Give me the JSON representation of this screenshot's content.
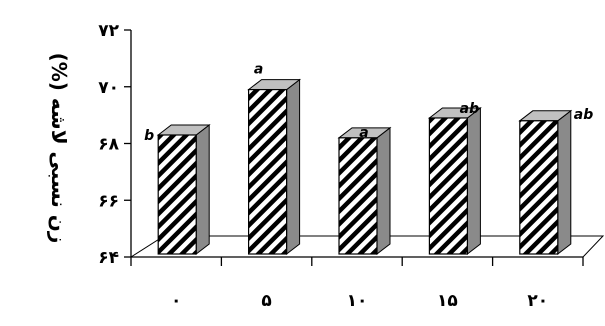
{
  "chart_data": {
    "type": "bar",
    "categories": [
      "۰",
      "۵",
      "۱۰",
      "۱۵",
      "۲۰"
    ],
    "values": [
      68.3,
      69.9,
      68.2,
      68.9,
      68.8
    ],
    "value_labels": [
      "b",
      "a",
      "a",
      "ab",
      "ab"
    ],
    "title": "",
    "xlabel": "",
    "ylabel": "زن نسبی لاشه (%)",
    "ylim": [
      64,
      72
    ],
    "yticks": [
      64,
      66,
      68,
      70,
      72
    ],
    "ytick_labels": [
      "۶۴",
      "۶۶",
      "۶۸",
      "۷۰",
      "۷۲"
    ],
    "grid": false,
    "legend": "none",
    "colors": {
      "bar_front": "#ffffff",
      "bar_stripe": "#000000",
      "bar_side": "#8a8a8a",
      "bar_top": "#c0c0c0"
    }
  }
}
